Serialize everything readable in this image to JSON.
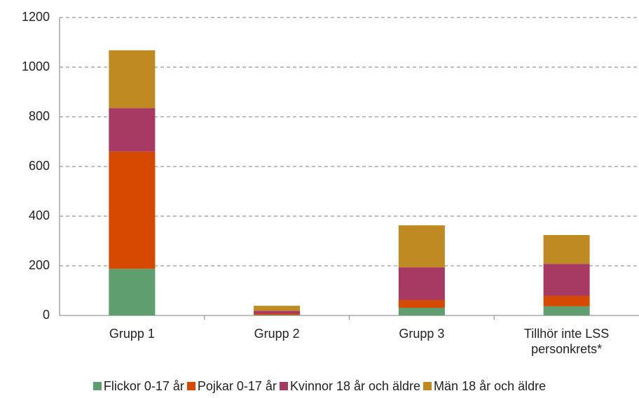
{
  "chart_data": {
    "type": "stacked_bar",
    "categories": [
      "Grupp 1",
      "Grupp 2",
      "Grupp 3",
      "Tillhör inte LSS personkrets*"
    ],
    "series": [
      {
        "name": "Flickor 0-17 år",
        "color": "#5f9e6e",
        "values": [
          188,
          2,
          31,
          37
        ]
      },
      {
        "name": "Pojkar 0-17 år",
        "color": "#d64a00",
        "values": [
          472,
          5,
          31,
          42
        ]
      },
      {
        "name": "Kvinnor 18 år och äldre",
        "color": "#a63a63",
        "values": [
          175,
          12,
          132,
          129
        ]
      },
      {
        "name": "Män 18 år och äldre",
        "color": "#c08a22",
        "values": [
          233,
          20,
          169,
          116
        ]
      }
    ],
    "ylim": [
      0,
      1200
    ],
    "yticks": [
      0,
      200,
      400,
      600,
      800,
      1000,
      1200
    ],
    "grid": true,
    "legend": "bottom"
  }
}
